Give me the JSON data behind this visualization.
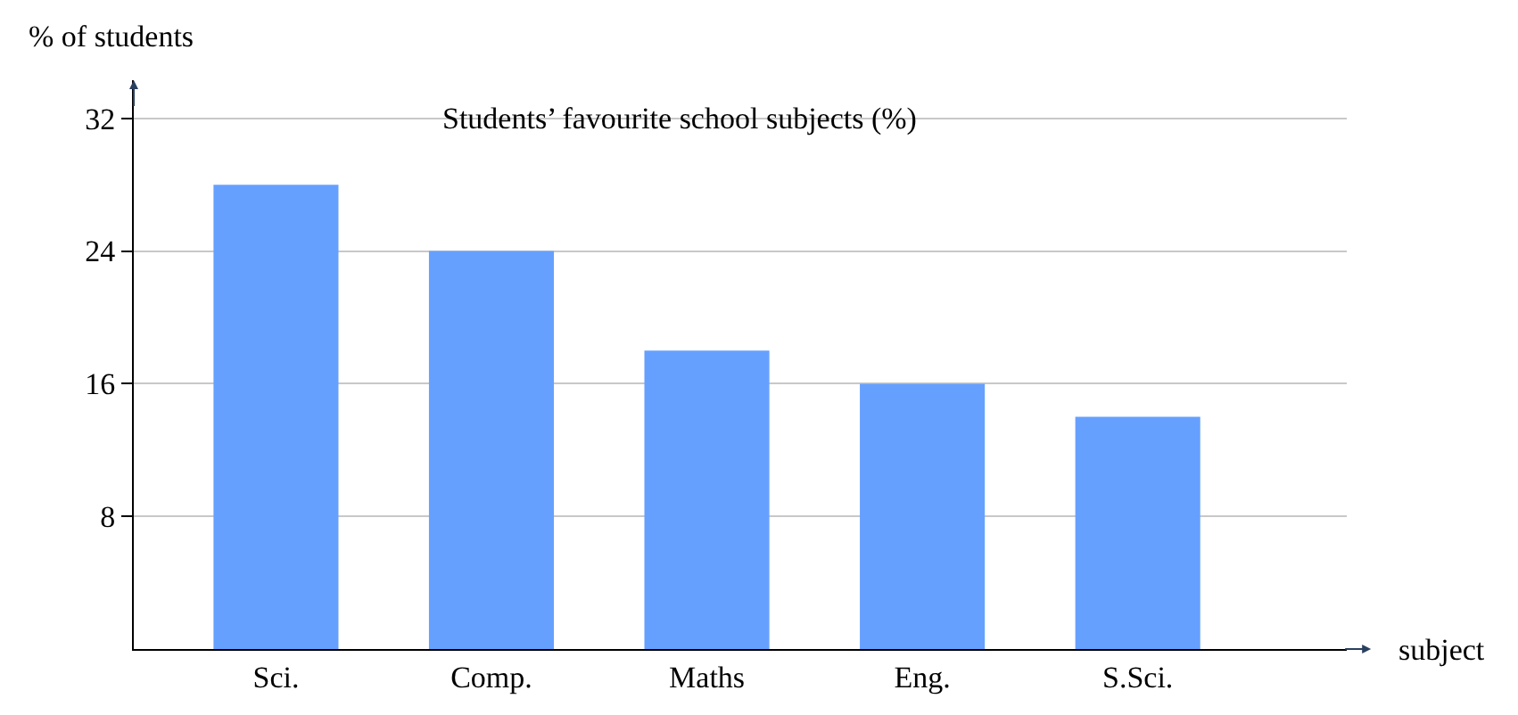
{
  "chart_data": {
    "type": "bar",
    "title": "Students’ favourite school subjects (%)",
    "xlabel": "subject",
    "ylabel": "% of students",
    "categories": [
      "Sci.",
      "Comp.",
      "Maths",
      "Eng.",
      "S.Sci."
    ],
    "values": [
      28,
      24,
      18,
      16,
      14
    ],
    "color": "#66a0ff",
    "ylim": [
      0,
      34.3
    ],
    "yticks": [
      8,
      16,
      24,
      32
    ],
    "grid": "y"
  }
}
